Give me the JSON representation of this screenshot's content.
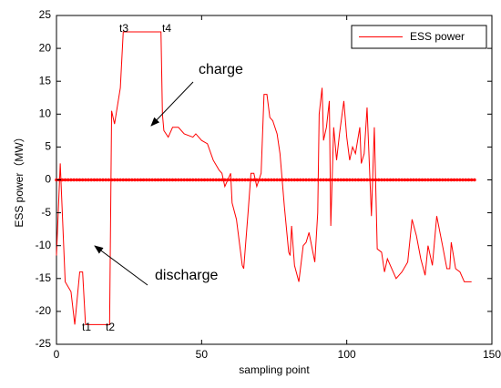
{
  "chart_data": {
    "type": "line",
    "xlabel": "sampling point",
    "ylabel": "ESS power（MW）",
    "xlim": [
      0,
      150
    ],
    "xticks": [
      0,
      50,
      100,
      150
    ],
    "ylim": [
      -25,
      25
    ],
    "yticks": [
      -25,
      -20,
      -15,
      -10,
      -5,
      0,
      5,
      10,
      15,
      20,
      25
    ],
    "grid": false,
    "legend": "top-right",
    "series": [
      {
        "name": "ESS power",
        "color": "#ff0000",
        "x": [
          0,
          1.3,
          3,
          5,
          6.3,
          8,
          9,
          10,
          17.5,
          18.3,
          19,
          20,
          22,
          23,
          36,
          36.5,
          37,
          38.5,
          40,
          42,
          44,
          47,
          48,
          50,
          52,
          54,
          56,
          57,
          58,
          60,
          60.5,
          62,
          64,
          64.5,
          66,
          67,
          68,
          69,
          70.5,
          71.5,
          72.5,
          73.5,
          74.5,
          76,
          77,
          78.5,
          80,
          80.5,
          81,
          82,
          83.5,
          85,
          86,
          87,
          89,
          90,
          90.5,
          91.5,
          92,
          93,
          94,
          94.5,
          95.5,
          96.5,
          97.5,
          99,
          100,
          101,
          102,
          103,
          104.5,
          105,
          106,
          107,
          108,
          108.5,
          109.5,
          110.5,
          112,
          113,
          114,
          116,
          117,
          118,
          119,
          121,
          122.5,
          124,
          125.5,
          127,
          128,
          129.5,
          131,
          133,
          134.5,
          135.5,
          136,
          137.5,
          139,
          140.5,
          143
        ],
        "values": [
          -11.5,
          2.5,
          -15.5,
          -17,
          -22,
          -14,
          -14,
          -22,
          -22,
          -22,
          10.5,
          8.5,
          14,
          22.5,
          22.5,
          10,
          7.5,
          6.5,
          8,
          8,
          7,
          6.5,
          7,
          6,
          5.5,
          3,
          1.5,
          1,
          -1,
          1,
          -3.5,
          -6,
          -13,
          -13.5,
          -5,
          1,
          1,
          -1,
          1,
          13,
          13,
          9.5,
          9,
          7,
          4,
          -4,
          -11,
          -11.5,
          -7,
          -13,
          -15.5,
          -10,
          -9.5,
          -8,
          -12.5,
          -5,
          10,
          14,
          6,
          8,
          12,
          -7,
          8,
          3,
          7,
          12,
          6.5,
          3,
          5,
          4,
          8,
          2.5,
          4,
          11,
          0,
          -5.5,
          8,
          -10.5,
          -11,
          -14,
          -12,
          -14,
          -15,
          -14.5,
          -14,
          -12.5,
          -6,
          -8.5,
          -12,
          -14.5,
          -10,
          -13,
          -5.5,
          -10,
          -13.5,
          -13.5,
          -9.5,
          -13.5,
          -14,
          -15.5,
          -15.5
        ]
      }
    ],
    "baseline": {
      "color": "#ff0000",
      "x": [
        0,
        1,
        2,
        3,
        4,
        5,
        6,
        7,
        8,
        9,
        10,
        11,
        12,
        13,
        14,
        15,
        16,
        17,
        18,
        19,
        20,
        21,
        22,
        23,
        24,
        25,
        26,
        27,
        28,
        29,
        30,
        31,
        32,
        33,
        34,
        35,
        36,
        37,
        38,
        39,
        40,
        41,
        42,
        43,
        44,
        45,
        46,
        47,
        48,
        49,
        50,
        51,
        52,
        53,
        54,
        55,
        56,
        57,
        58,
        59,
        60,
        61,
        62,
        63,
        64,
        65,
        66,
        67,
        68,
        69,
        70,
        71,
        72,
        73,
        74,
        75,
        76,
        77,
        78,
        79,
        80,
        81,
        82,
        83,
        84,
        85,
        86,
        87,
        88,
        89,
        90,
        91,
        92,
        93,
        94,
        95,
        96,
        97,
        98,
        99,
        100,
        101,
        102,
        103,
        104,
        105,
        106,
        107,
        108,
        109,
        110,
        111,
        112,
        113,
        114,
        115,
        116,
        117,
        118,
        119,
        120,
        121,
        122,
        123,
        124,
        125,
        126,
        127,
        128,
        129,
        130,
        131,
        132,
        133,
        134,
        135,
        136,
        137,
        138,
        139,
        140,
        141,
        142,
        143,
        144
      ],
      "values": [
        0,
        0,
        0,
        0,
        0,
        0,
        0,
        0,
        0,
        0,
        0,
        0,
        0,
        0,
        0,
        0,
        0,
        0,
        0,
        0,
        0,
        0,
        0,
        0,
        0,
        0,
        0,
        0,
        0,
        0,
        0,
        0,
        0,
        0,
        0,
        0,
        0,
        0,
        0,
        0,
        0,
        0,
        0,
        0,
        0,
        0,
        0,
        0,
        0,
        0,
        0,
        0,
        0,
        0,
        0,
        0,
        0,
        0,
        0,
        0,
        0,
        0,
        0,
        0,
        0,
        0,
        0,
        0,
        0,
        0,
        0,
        0,
        0,
        0,
        0,
        0,
        0,
        0,
        0,
        0,
        0,
        0,
        0,
        0,
        0,
        0,
        0,
        0,
        0,
        0,
        0,
        0,
        0,
        0,
        0,
        0,
        0,
        0,
        0,
        0,
        0,
        0,
        0,
        0,
        0,
        0,
        0,
        0,
        0,
        0,
        0,
        0,
        0,
        0,
        0,
        0,
        0,
        0,
        0,
        0,
        0,
        0,
        0,
        0,
        0,
        0,
        0,
        0,
        0,
        0,
        0,
        0,
        0,
        0,
        0,
        0,
        0,
        0,
        0,
        0,
        0,
        0,
        0,
        0,
        0
      ]
    },
    "annotations": [
      "t1",
      "t2",
      "t3",
      "t4",
      "charge",
      "discharge"
    ]
  }
}
